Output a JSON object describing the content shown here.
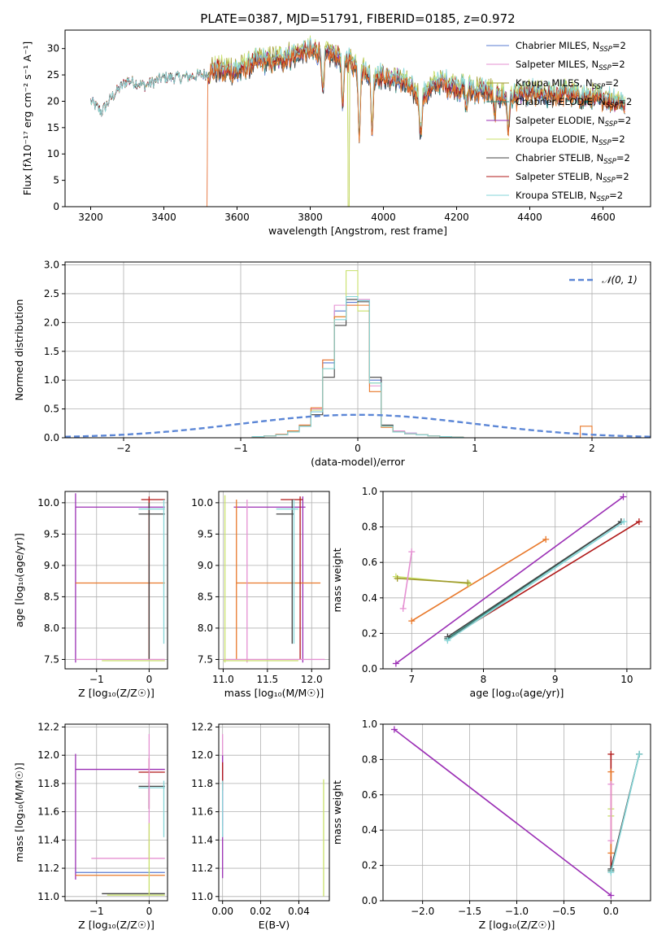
{
  "figure": {
    "title": "PLATE=0387, MJD=51791, FIBERID=0185, z=0.972"
  },
  "colors": {
    "Chabrier MILES": "#5a7bd1",
    "Salpeter MILES": "#e590d2",
    "Kroupa MILES": "#a09a2e",
    "Chabrier ELODIE": "#2e8b7f",
    "Salpeter ELODIE": "#9b2fb5",
    "Kroupa ELODIE": "#c8e06a",
    "Chabrier STELIB": "#444444",
    "Salpeter STELIB": "#b01818",
    "Kroupa STELIB": "#86d6d8",
    "orange": "#e8782a",
    "normal": "#5b86d6"
  },
  "chart_data": [
    {
      "type": "line",
      "xlabel": "wavelength [Angstrom, rest frame]",
      "ylabel": "Flux [fλ10⁻¹⁷ erg cm⁻² s⁻¹ A⁻¹]",
      "xlim": [
        3130,
        4730
      ],
      "ylim": [
        0,
        33.5
      ],
      "xticks": [
        3200,
        3400,
        3600,
        3800,
        4000,
        4200,
        4400,
        4600
      ],
      "yticks": [
        0,
        5,
        10,
        15,
        20,
        25,
        30
      ],
      "grid": false,
      "legend": "top-right",
      "legend_entries": [
        {
          "label": "Chabrier MILES, N",
          "sub": "SSP",
          "tail": "=2",
          "color": "#5a7bd1"
        },
        {
          "label": "Salpeter MILES, N",
          "sub": "SSP",
          "tail": "=2",
          "color": "#e590d2"
        },
        {
          "label": "Kroupa MILES, N",
          "sub": "SSP",
          "tail": "=2",
          "color": "#a09a2e"
        },
        {
          "label": "Chabrier ELODIE, N",
          "sub": "SSP",
          "tail": "=2",
          "color": "#2e8b7f"
        },
        {
          "label": "Salpeter ELODIE, N",
          "sub": "SSP",
          "tail": "=2",
          "color": "#9b2fb5"
        },
        {
          "label": "Kroupa ELODIE, N",
          "sub": "SSP",
          "tail": "=2",
          "color": "#c8e06a"
        },
        {
          "label": "Chabrier STELIB, N",
          "sub": "SSP",
          "tail": "=2",
          "color": "#444444"
        },
        {
          "label": "Salpeter STELIB, N",
          "sub": "SSP",
          "tail": "=2",
          "color": "#b01818"
        },
        {
          "label": "Kroupa STELIB, N",
          "sub": "SSP",
          "tail": "=2",
          "color": "#86d6d8"
        }
      ],
      "data_profile": {
        "x": [
          3200,
          3230,
          3260,
          3300,
          3350,
          3400,
          3450,
          3500,
          3540,
          3600,
          3650,
          3700,
          3750,
          3800,
          3850,
          3900,
          3950,
          4000,
          4050,
          4100,
          4150,
          4200,
          4250,
          4300,
          4350,
          4400,
          4450,
          4500,
          4550,
          4600,
          4660
        ],
        "y": [
          20,
          18,
          21,
          24,
          23,
          24.5,
          24.5,
          25,
          25.5,
          25,
          27,
          27,
          28,
          29,
          28.5,
          27.5,
          25,
          24,
          23.5,
          20,
          23,
          22,
          21.5,
          21,
          20,
          21,
          20.5,
          21,
          20,
          20,
          19
        ]
      },
      "absorption_lines": [
        {
          "x": 3835,
          "depth": 8
        },
        {
          "x": 3889,
          "depth": 10
        },
        {
          "x": 3934,
          "depth": 12
        },
        {
          "x": 3969,
          "depth": 11
        },
        {
          "x": 4102,
          "depth": 7
        },
        {
          "x": 4227,
          "depth": 3
        },
        {
          "x": 4304,
          "depth": 4
        },
        {
          "x": 4341,
          "depth": 6
        }
      ],
      "orange_cutoff": 3530,
      "yellow_cutoff": 3905
    },
    {
      "type": "bar",
      "xlabel": "(data-model)/error",
      "ylabel": "Normed distribution",
      "xlim": [
        -2.5,
        2.5
      ],
      "ylim": [
        0,
        3.05
      ],
      "xticks": [
        -2,
        -1,
        0,
        1,
        2
      ],
      "yticks": [
        0.0,
        0.5,
        1.0,
        1.5,
        2.0,
        2.5,
        3.0
      ],
      "grid": true,
      "legend": "top-right",
      "legend_entries": [
        {
          "label": "𝒩(0, 1)",
          "color": "#5b86d6",
          "dashed": true
        }
      ],
      "bin_edges": [
        -0.9,
        -0.8,
        -0.7,
        -0.6,
        -0.5,
        -0.4,
        -0.3,
        -0.2,
        -0.1,
        0.0,
        0.1,
        0.2,
        0.3,
        0.4,
        0.5,
        0.6,
        0.7,
        0.8,
        0.9
      ],
      "series": [
        {
          "name": "Chabrier MILES",
          "color": "#5a7bd1",
          "values": [
            0.02,
            0.03,
            0.05,
            0.1,
            0.2,
            0.45,
            1.3,
            2.2,
            2.35,
            2.38,
            1.0,
            0.2,
            0.1,
            0.08,
            0.05,
            0.03,
            0.02,
            0.01
          ]
        },
        {
          "name": "Salpeter MILES",
          "color": "#e590d2",
          "values": [
            0.02,
            0.03,
            0.06,
            0.12,
            0.22,
            0.5,
            1.35,
            2.3,
            2.3,
            2.4,
            0.9,
            0.2,
            0.12,
            0.08,
            0.05,
            0.03,
            0.02,
            0.01
          ]
        },
        {
          "name": "Kroupa ELODIE",
          "color": "#c8e06a",
          "values": [
            0.02,
            0.03,
            0.05,
            0.1,
            0.2,
            0.48,
            1.2,
            2.1,
            2.9,
            2.2,
            0.95,
            0.2,
            0.1,
            0.07,
            0.05,
            0.03,
            0.02,
            0.01
          ]
        },
        {
          "name": "Chabrier STELIB",
          "color": "#444444",
          "values": [
            0.02,
            0.03,
            0.05,
            0.1,
            0.2,
            0.4,
            1.05,
            1.95,
            2.4,
            2.36,
            1.05,
            0.22,
            0.1,
            0.07,
            0.05,
            0.03,
            0.02,
            0.01
          ]
        },
        {
          "name": "orange",
          "color": "#e8782a",
          "values": [
            0.02,
            0.03,
            0.06,
            0.12,
            0.22,
            0.52,
            1.35,
            2.1,
            2.3,
            2.3,
            0.8,
            0.18,
            0.1,
            0.07,
            0.05,
            0.03,
            0.02,
            0.01
          ]
        },
        {
          "name": "Kroupa STELIB",
          "color": "#86d6d8",
          "values": [
            0.02,
            0.03,
            0.05,
            0.1,
            0.2,
            0.45,
            1.2,
            2.05,
            2.45,
            2.38,
            0.95,
            0.2,
            0.1,
            0.07,
            0.05,
            0.03,
            0.02,
            0.01
          ]
        }
      ],
      "outlier_bins": [
        {
          "x0": 1.9,
          "x1": 2.0,
          "value": 0.2
        }
      ],
      "normal": {
        "mean": 0,
        "sd": 1
      }
    },
    {
      "type": "scatter",
      "xlabel": "Z [log₁₀(Z/Z☉)]",
      "ylabel": "age  [log₁₀(age/yr)]",
      "xlim": [
        -1.6,
        0.35
      ],
      "ylim": [
        7.35,
        10.18
      ],
      "xticks": [
        -1,
        0
      ],
      "yticks": [
        7.5,
        8.0,
        8.5,
        9.0,
        9.5,
        10.0
      ],
      "grid": true,
      "errorbars": [
        {
          "color": "#9b2fb5",
          "x": -1.4,
          "y": 9.93,
          "x0": -1.4,
          "x1": 0.3,
          "y0": 7.45,
          "y1": 10.15
        },
        {
          "color": "#e8782a",
          "x": 0,
          "y": 8.72,
          "x0": -1.4,
          "x1": 0.3,
          "y0": 7.5,
          "y1": 10.05
        },
        {
          "color": "#b01818",
          "x": 0,
          "y": 10.05,
          "x0": -0.15,
          "x1": 0.3,
          "y0": 7.5,
          "y1": 10.1
        },
        {
          "color": "#444444",
          "x": 0,
          "y": 9.82,
          "x0": -0.2,
          "x1": 0.3,
          "y0": 7.5,
          "y1": 10.0
        },
        {
          "color": "#86d6d8",
          "x": 0.28,
          "y": 9.9,
          "x0": -0.2,
          "x1": 0.3,
          "y0": 7.75,
          "y1": 10.05
        },
        {
          "color": "#e590d2",
          "x": -0.8,
          "y": 7.5,
          "x0": -1.4,
          "x1": 0.3,
          "y0": 7.5,
          "y1": 7.5
        },
        {
          "color": "#c8e06a",
          "x": -0.6,
          "y": 7.48,
          "x0": -0.9,
          "x1": 0.3,
          "y0": 7.48,
          "y1": 7.48
        }
      ]
    },
    {
      "type": "scatter",
      "xlabel": "mass [log₁₀(M/M☉)]",
      "ylabel": "",
      "xlim": [
        10.95,
        12.2
      ],
      "ylim": [
        7.35,
        10.18
      ],
      "xticks": [
        11.0,
        11.5,
        12.0
      ],
      "yticks": [
        7.5,
        8.0,
        8.5,
        9.0,
        9.5,
        10.0
      ],
      "grid": true,
      "errorbars": [
        {
          "color": "#9b2fb5",
          "x": 11.9,
          "y": 9.93,
          "x0": 11.12,
          "x1": 11.93,
          "y0": 7.45,
          "y1": 10.1
        },
        {
          "color": "#e8782a",
          "x": 11.15,
          "y": 8.72,
          "x0": 11.15,
          "x1": 12.1,
          "y0": 7.5,
          "y1": 10.05
        },
        {
          "color": "#b01818",
          "x": 11.87,
          "y": 10.05,
          "x0": 11.65,
          "x1": 11.9,
          "y0": 7.5,
          "y1": 10.1
        },
        {
          "color": "#444444",
          "x": 11.78,
          "y": 9.82,
          "x0": 11.6,
          "x1": 11.8,
          "y0": 7.75,
          "y1": 10.05
        },
        {
          "color": "#86d6d8",
          "x": 11.8,
          "y": 9.9,
          "x0": 11.6,
          "x1": 11.85,
          "y0": 7.75,
          "y1": 10.05
        },
        {
          "color": "#e590d2",
          "x": 11.27,
          "y": 7.5,
          "x0": 11.0,
          "x1": 12.15,
          "y0": 7.45,
          "y1": 10.05
        },
        {
          "color": "#c8e06a",
          "x": 11.02,
          "y": 7.48,
          "x0": 11.0,
          "x1": 11.85,
          "y0": 7.45,
          "y1": 10.12
        }
      ]
    },
    {
      "type": "line",
      "xlabel": "age  [log₁₀(age/yr)]",
      "ylabel": "mass weight",
      "xlim": [
        6.6,
        10.33
      ],
      "ylim": [
        0.0,
        1.0
      ],
      "xticks": [
        7,
        8,
        9,
        10
      ],
      "yticks": [
        0.0,
        0.2,
        0.4,
        0.6,
        0.8,
        1.0
      ],
      "grid": true,
      "series": [
        {
          "name": "Salpeter ELODIE",
          "color": "#9b2fb5",
          "x": [
            6.78,
            9.95
          ],
          "y": [
            0.03,
            0.97
          ]
        },
        {
          "name": "Salpeter STELIB",
          "color": "#b01818",
          "x": [
            7.5,
            10.17
          ],
          "y": [
            0.17,
            0.83
          ]
        },
        {
          "name": "Chabrier ELODIE",
          "color": "#2e8b7f",
          "x": [
            7.5,
            9.92
          ],
          "y": [
            0.17,
            0.83
          ]
        },
        {
          "name": "Chabrier STELIB",
          "color": "#444444",
          "x": [
            7.5,
            9.92
          ],
          "y": [
            0.18,
            0.83
          ]
        },
        {
          "name": "Kroupa STELIB",
          "color": "#86d6d8",
          "x": [
            7.5,
            9.96
          ],
          "y": [
            0.16,
            0.83
          ]
        },
        {
          "name": "orange",
          "color": "#e8782a",
          "x": [
            7.0,
            8.87
          ],
          "y": [
            0.27,
            0.73
          ]
        },
        {
          "name": "Kroupa ELODIE",
          "color": "#c8e06a",
          "x": [
            6.78,
            7.8
          ],
          "y": [
            0.52,
            0.48
          ]
        },
        {
          "name": "Kroupa MILES",
          "color": "#a09a2e",
          "x": [
            6.8,
            7.78
          ],
          "y": [
            0.51,
            0.485
          ]
        },
        {
          "name": "Salpeter MILES",
          "color": "#e590d2",
          "x": [
            6.88,
            7.0
          ],
          "y": [
            0.34,
            0.66
          ]
        }
      ]
    },
    {
      "type": "scatter",
      "xlabel": "Z [log₁₀(Z/Z☉)]",
      "ylabel": "mass [log₁₀(M/M☉)]",
      "xlim": [
        -1.6,
        0.35
      ],
      "ylim": [
        10.97,
        12.22
      ],
      "xticks": [
        -1,
        0
      ],
      "yticks": [
        11.0,
        11.2,
        11.4,
        11.6,
        11.8,
        12.0,
        12.2
      ],
      "grid": true,
      "errorbars": [
        {
          "color": "#9b2fb5",
          "x": -1.4,
          "y": 11.9,
          "x0": -1.4,
          "x1": 0.3,
          "y0": 11.12,
          "y1": 12.01
        },
        {
          "color": "#b01818",
          "x": 0,
          "y": 11.88,
          "x0": -0.2,
          "x1": 0.3,
          "y0": 11.62,
          "y1": 11.98
        },
        {
          "color": "#444444",
          "x": 0,
          "y": 11.78,
          "x0": -0.2,
          "x1": 0.3,
          "y0": 11.62,
          "y1": 11.82
        },
        {
          "color": "#86d6d8",
          "x": 0.28,
          "y": 11.77,
          "x0": -0.2,
          "x1": 0.3,
          "y0": 11.42,
          "y1": 11.82
        },
        {
          "color": "#e590d2",
          "x": 0,
          "y": 11.27,
          "x0": -1.1,
          "x1": 0.3,
          "y0": 11.27,
          "y1": 12.15
        },
        {
          "color": "#e8782a",
          "x": 0,
          "y": 11.15,
          "x0": -1.4,
          "x1": 0.3,
          "y0": 11.15,
          "y1": 11.15
        },
        {
          "color": "#5a7bd1",
          "x": 0,
          "y": 11.17,
          "x0": -1.4,
          "x1": 0.3,
          "y0": 11.17,
          "y1": 11.17
        },
        {
          "color": "#444444",
          "x": 0,
          "y": 11.02,
          "x0": -0.9,
          "x1": 0.3,
          "y0": 11.02,
          "y1": 11.02
        },
        {
          "color": "#c8e06a",
          "x": 0,
          "y": 11.01,
          "x0": -0.8,
          "x1": 0.3,
          "y0": 11.01,
          "y1": 11.52
        }
      ]
    },
    {
      "type": "scatter",
      "xlabel": "E(B-V)",
      "ylabel": "",
      "xlim": [
        -0.002,
        0.056
      ],
      "ylim": [
        10.97,
        12.22
      ],
      "xticks": [
        0.0,
        0.02,
        0.04
      ],
      "yticks": [
        11.0,
        11.2,
        11.4,
        11.6,
        11.8,
        12.0,
        12.2
      ],
      "grid": true,
      "errorbars": [
        {
          "color": "#e590d2",
          "x": 0.0,
          "y": 11.9,
          "x0": 0.0,
          "x1": 0.0,
          "y0": 11.5,
          "y1": 12.15
        },
        {
          "color": "#9b2fb5",
          "x": 0.0,
          "y": 11.6,
          "x0": 0.0,
          "x1": 0.0,
          "y0": 11.13,
          "y1": 12.0
        },
        {
          "color": "#b01818",
          "x": 0.0,
          "y": 11.85,
          "x0": 0.0,
          "x1": 0.0,
          "y0": 11.75,
          "y1": 11.95
        },
        {
          "color": "#86d6d8",
          "x": 0.0,
          "y": 11.6,
          "x0": 0.0,
          "x1": 0.0,
          "y0": 11.42,
          "y1": 11.82
        },
        {
          "color": "#c8e06a",
          "x": 0.053,
          "y": 11.4,
          "x0": 0.053,
          "x1": 0.053,
          "y0": 11.0,
          "y1": 11.83
        }
      ]
    },
    {
      "type": "line",
      "xlabel": "Z [log₁₀(Z/Z☉)]",
      "ylabel": "mass weight",
      "xlim": [
        -2.42,
        0.42
      ],
      "ylim": [
        0.0,
        1.0
      ],
      "xticks": [
        -2.0,
        -1.5,
        -1.0,
        -0.5,
        0.0
      ],
      "yticks": [
        0.0,
        0.2,
        0.4,
        0.6,
        0.8,
        1.0
      ],
      "grid": true,
      "series": [
        {
          "name": "Salpeter ELODIE",
          "color": "#9b2fb5",
          "x": [
            -2.3,
            0.0
          ],
          "y": [
            0.97,
            0.03
          ]
        },
        {
          "name": "Salpeter STELIB",
          "color": "#b01818",
          "x": [
            0.0,
            0.0
          ],
          "y": [
            0.17,
            0.83
          ]
        },
        {
          "name": "orange",
          "color": "#e8782a",
          "x": [
            0.0,
            0.0
          ],
          "y": [
            0.27,
            0.73
          ]
        },
        {
          "name": "Kroupa ELODIE",
          "color": "#c8e06a",
          "x": [
            0.0,
            0.0
          ],
          "y": [
            0.48,
            0.52
          ]
        },
        {
          "name": "Salpeter MILES",
          "color": "#e590d2",
          "x": [
            0.0,
            0.0
          ],
          "y": [
            0.34,
            0.66
          ]
        },
        {
          "name": "Chabrier ELODIE",
          "color": "#2e8b7f",
          "x": [
            0.0,
            0.3
          ],
          "y": [
            0.17,
            0.83
          ]
        },
        {
          "name": "Chabrier STELIB",
          "color": "#444444",
          "x": [
            0.0,
            0.3
          ],
          "y": [
            0.18,
            0.83
          ]
        },
        {
          "name": "Kroupa STELIB",
          "color": "#86d6d8",
          "x": [
            0.0,
            0.3
          ],
          "y": [
            0.16,
            0.83
          ]
        }
      ]
    }
  ]
}
